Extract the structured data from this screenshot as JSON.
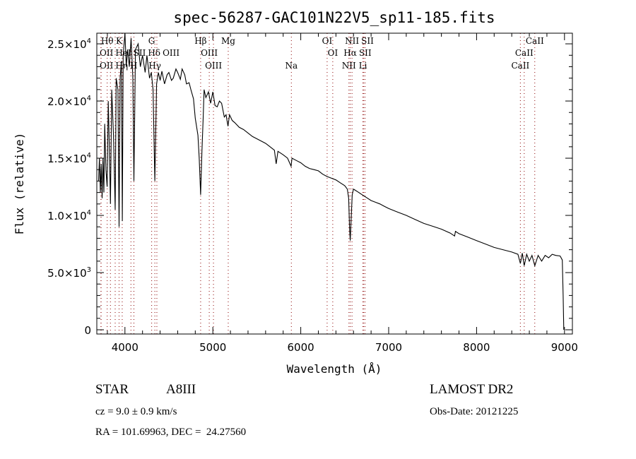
{
  "chart_data": {
    "type": "line",
    "title": "spec-56287-GAC101N22V5_sp11-185.fits",
    "xlabel": "Wavelength (Å)",
    "ylabel": "Flux (relative)",
    "xlim": [
      3680,
      9090
    ],
    "ylim": [
      -370,
      25930
    ],
    "grid": false,
    "x_ticks": [
      4000,
      5000,
      6000,
      7000,
      8000,
      9000
    ],
    "x_tick_labels": [
      "4000",
      "5000",
      "6000",
      "7000",
      "8000",
      "9000"
    ],
    "y_ticks": [
      0,
      5000,
      10000,
      15000,
      20000,
      25000
    ],
    "y_tick_labels": [
      {
        "mant": "0",
        "exp": ""
      },
      {
        "mant": "5.0×10",
        "exp": "3"
      },
      {
        "mant": "1.0×10",
        "exp": "4"
      },
      {
        "mant": "1.5×10",
        "exp": "4"
      },
      {
        "mant": "2.0×10",
        "exp": "4"
      },
      {
        "mant": "2.5×10",
        "exp": "4"
      }
    ],
    "series": [
      {
        "name": "flux",
        "color": "#000000",
        "points": [
          [
            3700,
            13000
          ],
          [
            3710,
            15000
          ],
          [
            3720,
            12000
          ],
          [
            3730,
            14500
          ],
          [
            3740,
            11500
          ],
          [
            3750,
            15000
          ],
          [
            3760,
            12000
          ],
          [
            3770,
            18000
          ],
          [
            3784,
            14000
          ],
          [
            3797,
            12500
          ],
          [
            3810,
            20000
          ],
          [
            3822,
            16000
          ],
          [
            3835,
            11000
          ],
          [
            3850,
            21000
          ],
          [
            3870,
            17000
          ],
          [
            3889,
            10500
          ],
          [
            3900,
            22000
          ],
          [
            3920,
            21000
          ],
          [
            3933,
            9000
          ],
          [
            3945,
            22000
          ],
          [
            3960,
            23500
          ],
          [
            3970,
            9500
          ],
          [
            3980,
            24000
          ],
          [
            4000,
            26000
          ],
          [
            4015,
            23000
          ],
          [
            4030,
            24500
          ],
          [
            4050,
            23000
          ],
          [
            4070,
            25500
          ],
          [
            4090,
            22000
          ],
          [
            4102,
            13000
          ],
          [
            4120,
            24500
          ],
          [
            4150,
            25000
          ],
          [
            4175,
            23000
          ],
          [
            4200,
            24000
          ],
          [
            4230,
            22500
          ],
          [
            4250,
            24000
          ],
          [
            4280,
            22000
          ],
          [
            4300,
            22500
          ],
          [
            4320,
            21000
          ],
          [
            4340,
            13000
          ],
          [
            4360,
            21500
          ],
          [
            4380,
            22500
          ],
          [
            4400,
            21800
          ],
          [
            4420,
            22600
          ],
          [
            4450,
            21500
          ],
          [
            4480,
            22300
          ],
          [
            4500,
            22500
          ],
          [
            4530,
            21800
          ],
          [
            4550,
            22000
          ],
          [
            4580,
            22800
          ],
          [
            4600,
            22500
          ],
          [
            4630,
            21900
          ],
          [
            4650,
            22800
          ],
          [
            4680,
            22300
          ],
          [
            4700,
            21500
          ],
          [
            4730,
            21600
          ],
          [
            4750,
            21000
          ],
          [
            4780,
            20200
          ],
          [
            4800,
            18500
          ],
          [
            4830,
            17000
          ],
          [
            4845,
            15000
          ],
          [
            4861,
            11800
          ],
          [
            4875,
            15500
          ],
          [
            4890,
            18500
          ],
          [
            4900,
            21000
          ],
          [
            4920,
            20300
          ],
          [
            4950,
            20800
          ],
          [
            4975,
            19800
          ],
          [
            5000,
            20800
          ],
          [
            5025,
            19600
          ],
          [
            5050,
            19500
          ],
          [
            5075,
            20000
          ],
          [
            5100,
            19800
          ],
          [
            5130,
            18600
          ],
          [
            5150,
            18800
          ],
          [
            5172,
            17800
          ],
          [
            5190,
            18800
          ],
          [
            5220,
            18300
          ],
          [
            5250,
            18100
          ],
          [
            5300,
            17700
          ],
          [
            5350,
            17500
          ],
          [
            5400,
            17200
          ],
          [
            5450,
            16900
          ],
          [
            5500,
            16700
          ],
          [
            5550,
            16500
          ],
          [
            5600,
            16300
          ],
          [
            5650,
            16000
          ],
          [
            5700,
            15700
          ],
          [
            5720,
            14500
          ],
          [
            5740,
            15600
          ],
          [
            5800,
            15300
          ],
          [
            5850,
            15000
          ],
          [
            5890,
            14300
          ],
          [
            5900,
            15000
          ],
          [
            5950,
            14800
          ],
          [
            6000,
            14600
          ],
          [
            6050,
            14300
          ],
          [
            6100,
            14100
          ],
          [
            6150,
            14000
          ],
          [
            6200,
            13900
          ],
          [
            6250,
            13600
          ],
          [
            6300,
            13400
          ],
          [
            6350,
            13250
          ],
          [
            6400,
            13100
          ],
          [
            6450,
            12850
          ],
          [
            6500,
            12600
          ],
          [
            6530,
            12300
          ],
          [
            6545,
            11500
          ],
          [
            6555,
            9000
          ],
          [
            6563,
            7800
          ],
          [
            6572,
            9500
          ],
          [
            6585,
            11800
          ],
          [
            6600,
            12300
          ],
          [
            6620,
            12200
          ],
          [
            6650,
            12050
          ],
          [
            6700,
            11800
          ],
          [
            6750,
            11550
          ],
          [
            6800,
            11300
          ],
          [
            6850,
            11150
          ],
          [
            6900,
            11000
          ],
          [
            6950,
            10800
          ],
          [
            7000,
            10600
          ],
          [
            7100,
            10300
          ],
          [
            7200,
            10000
          ],
          [
            7300,
            9650
          ],
          [
            7400,
            9300
          ],
          [
            7500,
            9050
          ],
          [
            7600,
            8800
          ],
          [
            7700,
            8450
          ],
          [
            7750,
            8200
          ],
          [
            7760,
            8600
          ],
          [
            7800,
            8400
          ],
          [
            7900,
            8100
          ],
          [
            8000,
            7800
          ],
          [
            8100,
            7500
          ],
          [
            8200,
            7200
          ],
          [
            8300,
            7000
          ],
          [
            8400,
            6800
          ],
          [
            8470,
            6600
          ],
          [
            8498,
            5800
          ],
          [
            8520,
            6700
          ],
          [
            8542,
            5600
          ],
          [
            8570,
            6600
          ],
          [
            8600,
            6000
          ],
          [
            8630,
            6500
          ],
          [
            8662,
            5600
          ],
          [
            8700,
            6500
          ],
          [
            8740,
            6000
          ],
          [
            8780,
            6500
          ],
          [
            8820,
            6300
          ],
          [
            8860,
            6600
          ],
          [
            8900,
            6500
          ],
          [
            8950,
            6450
          ],
          [
            8975,
            6100
          ],
          [
            8985,
            3000
          ],
          [
            8992,
            0
          ]
        ]
      }
    ],
    "line_markers": {
      "color": "#8b0000",
      "lines": [
        {
          "w": 3727,
          "label": "OII",
          "row": 2
        },
        {
          "w": 3729,
          "label": "OII",
          "row": 3
        },
        {
          "w": 3798,
          "label": "Hθ",
          "row": 1
        },
        {
          "w": 3835,
          "label": "Hη",
          "row": 3
        },
        {
          "w": 3889,
          "label": "HeI",
          "row": 2
        },
        {
          "w": 3933,
          "label": "K",
          "row": 1
        },
        {
          "w": 3969,
          "label": "H",
          "row": 3
        },
        {
          "w": 4068,
          "label": "SII",
          "row": 2
        },
        {
          "w": 4102,
          "label": "Hδ",
          "row": 2
        },
        {
          "w": 4304,
          "label": "G",
          "row": 1
        },
        {
          "w": 4340,
          "label": "Hγ",
          "row": 3
        },
        {
          "w": 4363,
          "label": "OIII",
          "row": 2
        },
        {
          "w": 4861,
          "label": "Hβ",
          "row": 1
        },
        {
          "w": 4959,
          "label": "OIII",
          "row": 2
        },
        {
          "w": 5007,
          "label": "OIII",
          "row": 3
        },
        {
          "w": 5175,
          "label": "Mg",
          "row": 1
        },
        {
          "w": 5893,
          "label": "Na",
          "row": 3
        },
        {
          "w": 6300,
          "label": "OI",
          "row": 1
        },
        {
          "w": 6364,
          "label": "OI",
          "row": 2
        },
        {
          "w": 6548,
          "label": "NII",
          "row": 3
        },
        {
          "w": 6563,
          "label": "Hα",
          "row": 2
        },
        {
          "w": 6583,
          "label": "NII",
          "row": 1
        },
        {
          "w": 6707,
          "label": "Li",
          "row": 3
        },
        {
          "w": 6716,
          "label": "SII",
          "row": 1
        },
        {
          "w": 6731,
          "label": "SII",
          "row": 2
        },
        {
          "w": 8498,
          "label": "CaII",
          "row": 3
        },
        {
          "w": 8542,
          "label": "CaII",
          "row": 2
        },
        {
          "w": 8662,
          "label": "CaII",
          "row": 1
        }
      ]
    }
  },
  "info": {
    "object_class": "STAR",
    "subclass": "A8III",
    "redshift": "cz = 9.0 ± 0.9 km/s",
    "coords": "RA = 101.69963, DEC =  24.27560",
    "survey": "LAMOST DR2",
    "obs_date": "Obs-Date: 20121225"
  }
}
